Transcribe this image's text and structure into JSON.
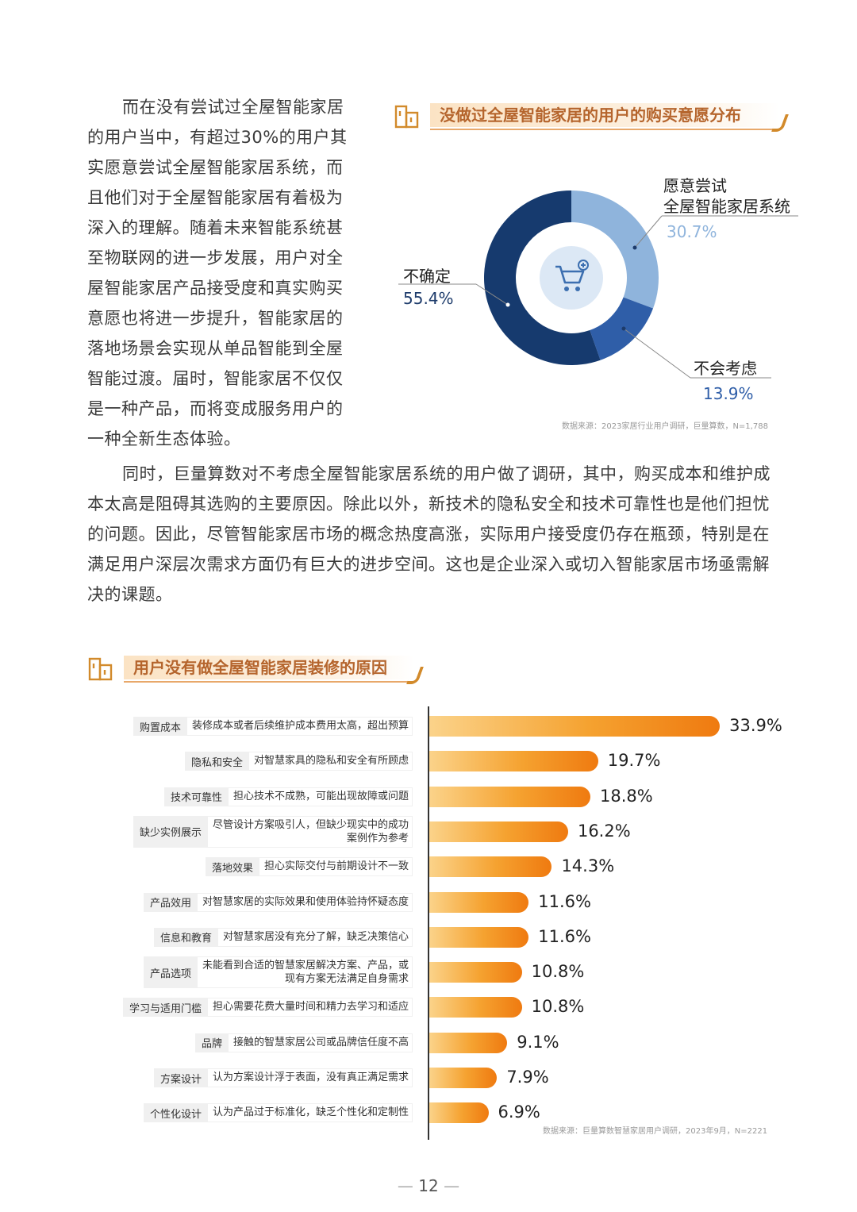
{
  "para1": {
    "lines": [
      "而在没有尝试过全屋智能家居",
      "的用户当中，有超过30%的用户其",
      "实愿意尝试全屋智能家居系统，而",
      "且他们对于全屋智能家居有着极为",
      "深入的理解。随着未来智能系统甚",
      "至物联网的进一步发展，用户对全",
      "屋智能家居产品接受度和真实购买",
      "意愿也将进一步提升，智能家居的",
      "落地场景会实现从单品智能到全屋",
      "智能过渡。届时，智能家居不仅仅",
      "是一种产品，而将变成服务用户的",
      "一种全新生态体验。"
    ]
  },
  "para2": {
    "lines": [
      "同时，巨量算数对不考虑全屋智能家居系统的用户做了调研，其中，购买成本和维护成",
      "本太高是阻碍其选购的主要原因。除此以外，新技术的隐私安全和技术可靠性也是他们担忧",
      "的问题。因此，尽管智能家居市场的概念热度高涨，实际用户接受度仍存在瓶颈，特别是在",
      "满足用户深层次需求方面仍有巨大的进步空间。这也是企业深入或切入智能家居市场亟需解",
      "决的课题。"
    ]
  },
  "donut": {
    "title": "没做过全屋智能家居的用户的购买意愿分布",
    "source": "数据来源：2023家居行业用户调研，巨量算数，N=1,788",
    "center_icon": "shopping-cart-icon",
    "labels": {
      "willing_line1": "愿意尝试",
      "willing_line2": "全屋智能家居系统",
      "willing_pct": "30.7%",
      "unsure": "不确定",
      "unsure_pct": "55.4%",
      "no": "不会考虑",
      "no_pct": "13.9%"
    },
    "colors": {
      "willing": "#8fb4dc",
      "no": "#2f5ea8",
      "unsure": "#163a6e"
    }
  },
  "bars": {
    "title": "用户没有做全屋智能家居装修的原因",
    "source": "数据来源：巨量算数智慧家居用户调研，2023年9月，N=2221"
  },
  "chart_data": [
    {
      "type": "pie",
      "donut": true,
      "title": "没做过全屋智能家居的用户的购买意愿分布",
      "categories": [
        "愿意尝试全屋智能家居系统",
        "不会考虑",
        "不确定"
      ],
      "values": [
        30.7,
        13.9,
        55.4
      ],
      "unit": "%"
    },
    {
      "type": "bar",
      "orientation": "horizontal",
      "title": "用户没有做全屋智能家居装修的原因",
      "categories": [
        {
          "cat": "购置成本",
          "desc": [
            "装修成本或者后续维护成本费用太高，超出预算"
          ]
        },
        {
          "cat": "隐私和安全",
          "desc": [
            "对智慧家具的隐私和安全有所顾虑"
          ]
        },
        {
          "cat": "技术可靠性",
          "desc": [
            "担心技术不成熟，可能出现故障或问题"
          ]
        },
        {
          "cat": "缺少实例展示",
          "desc": [
            "尽管设计方案吸引人，但缺少现实中的成功",
            "案例作为参考"
          ]
        },
        {
          "cat": "落地效果",
          "desc": [
            "担心实际交付与前期设计不一致"
          ]
        },
        {
          "cat": "产品效用",
          "desc": [
            "对智慧家居的实际效果和使用体验持怀疑态度"
          ]
        },
        {
          "cat": "信息和教育",
          "desc": [
            "对智慧家居没有充分了解，缺乏决策信心"
          ]
        },
        {
          "cat": "产品选项",
          "desc": [
            "未能看到合适的智慧家居解决方案、产品，或",
            "现有方案无法满足自身需求"
          ]
        },
        {
          "cat": "学习与适用门槛",
          "desc": [
            "担心需要花费大量时间和精力去学习和适应"
          ]
        },
        {
          "cat": "品牌",
          "desc": [
            "接触的智慧家居公司或品牌信任度不高"
          ]
        },
        {
          "cat": "方案设计",
          "desc": [
            "认为方案设计浮于表面，没有真正满足需求"
          ]
        },
        {
          "cat": "个性化设计",
          "desc": [
            "认为产品过于标准化，缺乏个性化和定制性"
          ]
        }
      ],
      "values": [
        33.9,
        19.7,
        18.8,
        16.2,
        14.3,
        11.6,
        11.6,
        10.8,
        10.8,
        9.1,
        7.9,
        6.9
      ],
      "labels": [
        "33.9%",
        "19.7%",
        "18.8%",
        "16.2%",
        "14.3%",
        "11.6%",
        "11.6%",
        "10.8%",
        "10.8%",
        "9.1%",
        "7.9%",
        "6.9%"
      ],
      "unit": "%"
    }
  ],
  "page_number": "12"
}
